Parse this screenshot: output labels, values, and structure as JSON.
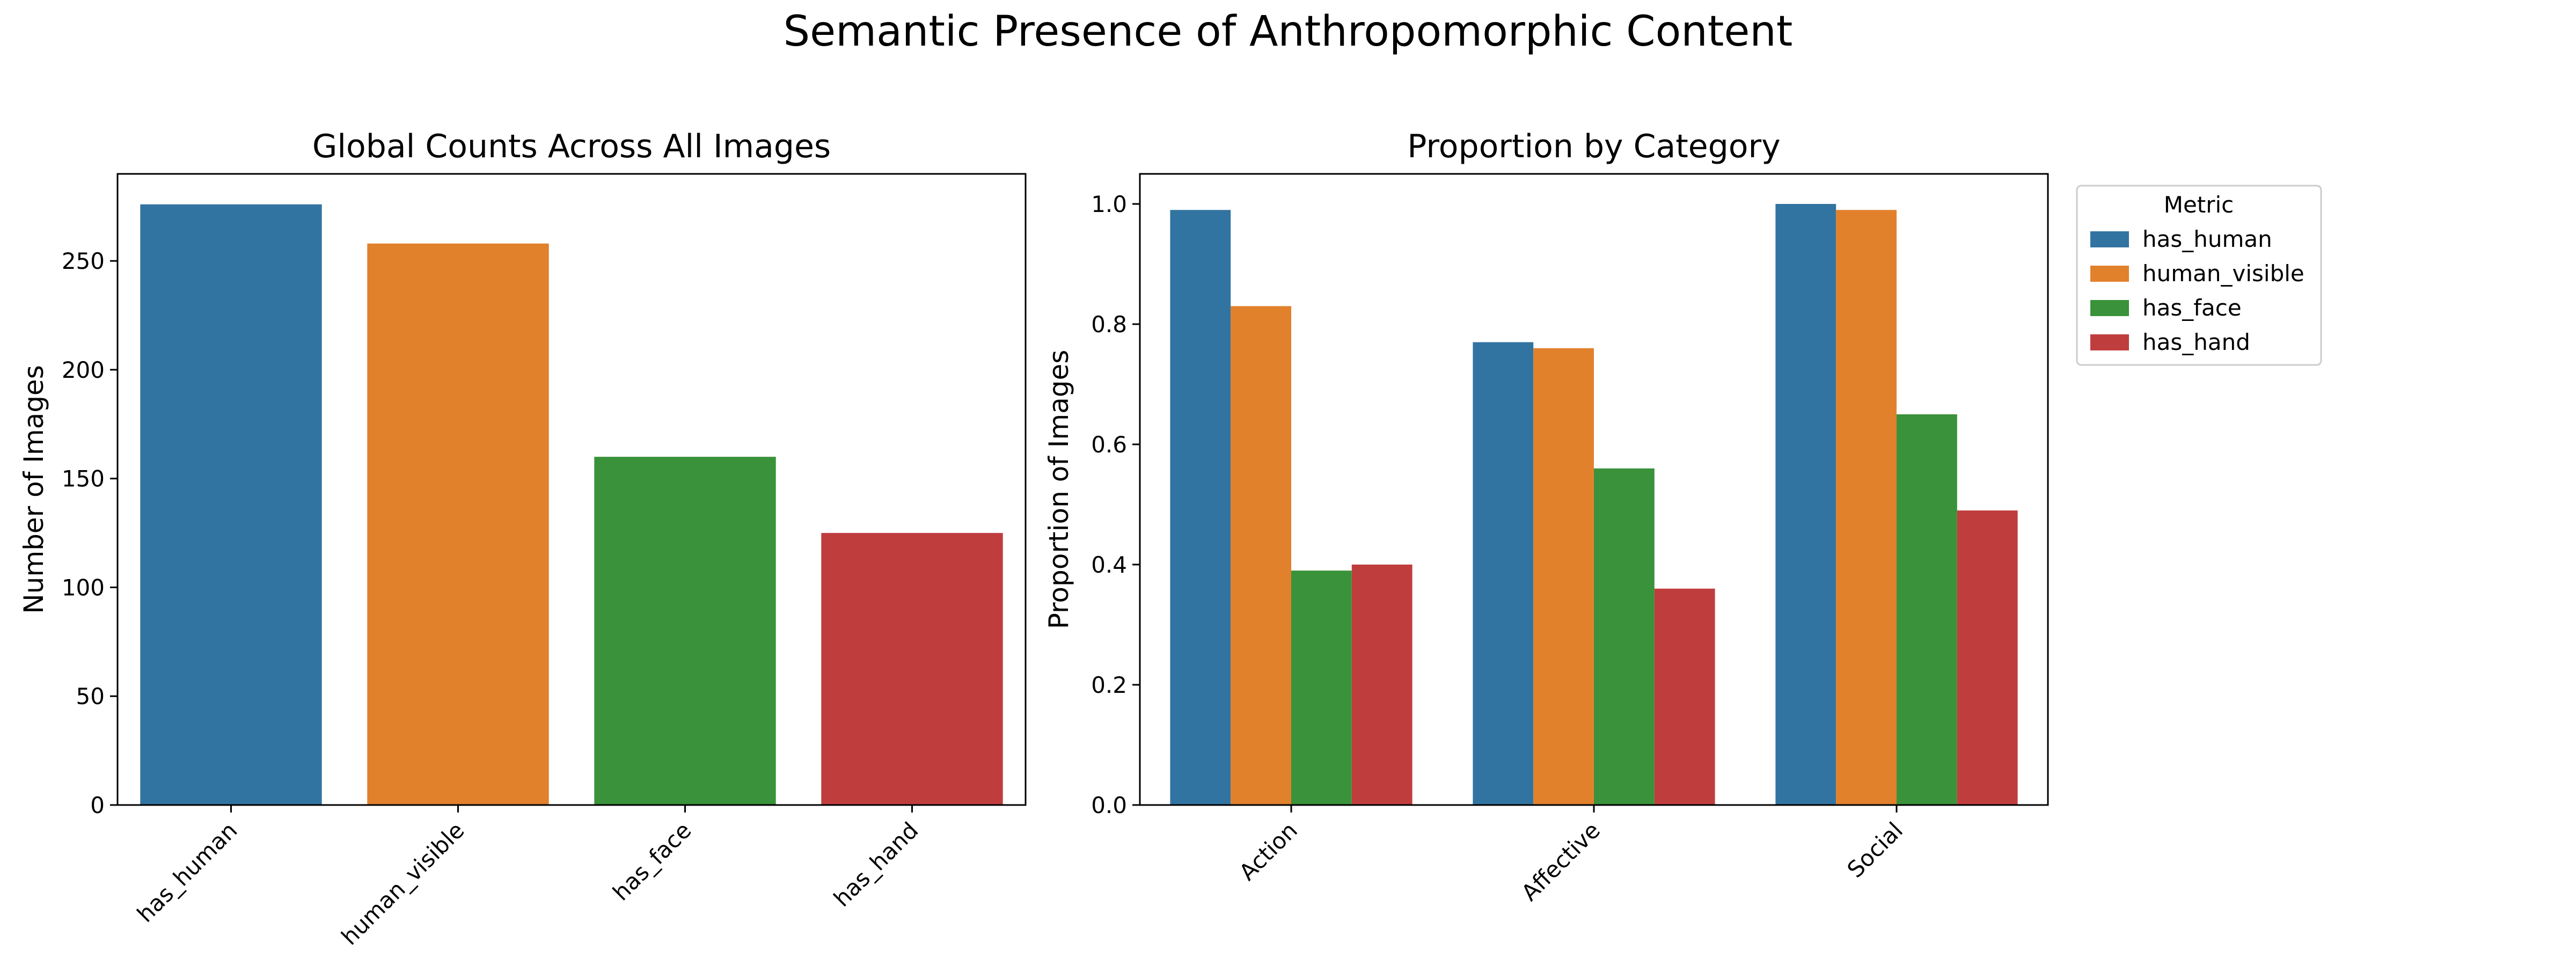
{
  "figure_title": "Semantic Presence of Anthropomorphic Content",
  "colors": {
    "has_human": "#3274a1",
    "human_visible": "#e1812c",
    "has_face": "#3a923a",
    "has_hand": "#c03d3e",
    "axis": "#000000",
    "legend_border": "#cccccc"
  },
  "chart_data": [
    {
      "type": "bar",
      "title": "Global Counts Across All Images",
      "xlabel": "",
      "ylabel": "Number of Images",
      "categories": [
        "has_human",
        "human_visible",
        "has_face",
        "has_hand"
      ],
      "values": [
        276,
        258,
        160,
        125
      ],
      "ylim": [
        0,
        290
      ],
      "yticks": [
        0,
        50,
        100,
        150,
        200,
        250
      ],
      "grid": false
    },
    {
      "type": "bar",
      "title": "Proportion by Category",
      "xlabel": "",
      "ylabel": "Proportion of Images",
      "categories": [
        "Action",
        "Affective",
        "Social"
      ],
      "series": [
        {
          "name": "has_human",
          "values": [
            0.99,
            0.77,
            1.0
          ]
        },
        {
          "name": "human_visible",
          "values": [
            0.83,
            0.76,
            0.99
          ]
        },
        {
          "name": "has_face",
          "values": [
            0.39,
            0.56,
            0.65
          ]
        },
        {
          "name": "has_hand",
          "values": [
            0.4,
            0.36,
            0.49
          ]
        }
      ],
      "ylim": [
        0,
        1.05
      ],
      "yticks": [
        0.0,
        0.2,
        0.4,
        0.6,
        0.8,
        1.0
      ],
      "grid": false,
      "legend": {
        "title": "Metric",
        "placement": "outside-right-top"
      }
    }
  ]
}
